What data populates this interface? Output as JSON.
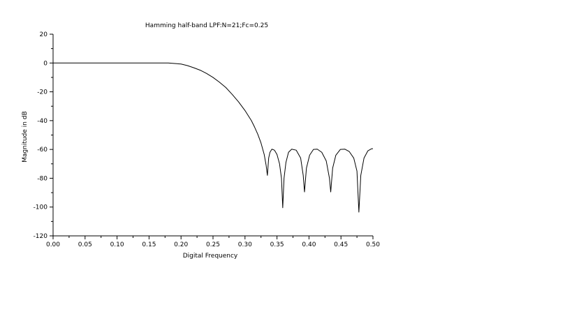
{
  "chart_data": {
    "type": "line",
    "title": "Hamming half-band LPF:N=21;Fc=0.25",
    "xlabel": "Digital Frequency",
    "ylabel": "Magnitude in dB",
    "xlim": [
      0.0,
      0.5
    ],
    "ylim": [
      -120,
      20
    ],
    "xticks": [
      "0.00",
      "0.05",
      "0.10",
      "0.15",
      "0.20",
      "0.25",
      "0.30",
      "0.35",
      "0.40",
      "0.45",
      "0.50"
    ],
    "yticks": [
      "20",
      "0",
      "-20",
      "-40",
      "-60",
      "-80",
      "-100",
      "-120"
    ],
    "grid": false,
    "legend": "none",
    "line_color": "#000000",
    "series": [
      {
        "x": [
          0.0,
          0.05,
          0.1,
          0.15,
          0.18,
          0.2,
          0.21,
          0.22,
          0.23,
          0.24,
          0.25,
          0.26,
          0.27,
          0.28,
          0.29,
          0.3,
          0.31,
          0.315,
          0.32,
          0.325,
          0.33,
          0.333,
          0.335,
          0.337,
          0.339,
          0.342,
          0.346,
          0.35,
          0.354,
          0.357,
          0.359,
          0.361,
          0.364,
          0.368,
          0.373,
          0.38,
          0.387,
          0.391,
          0.393,
          0.396,
          0.401,
          0.407,
          0.413,
          0.42,
          0.427,
          0.432,
          0.434,
          0.437,
          0.442,
          0.449,
          0.456,
          0.463,
          0.47,
          0.475,
          0.478,
          0.481,
          0.486,
          0.492,
          0.498,
          0.5
        ],
        "y": [
          0.0,
          0.0,
          0.0,
          0.0,
          0.0,
          -0.7,
          -1.8,
          -3.3,
          -5.0,
          -7.3,
          -10.0,
          -13.3,
          -17.0,
          -21.8,
          -27.0,
          -33.0,
          -40.0,
          -44.5,
          -49.5,
          -55.5,
          -63.5,
          -71.0,
          -78.0,
          -66.0,
          -62.0,
          -59.8,
          -60.5,
          -63.5,
          -70.0,
          -80.0,
          -100.5,
          -80.0,
          -69.0,
          -62.0,
          -59.8,
          -60.5,
          -66.0,
          -78.0,
          -89.5,
          -73.0,
          -64.0,
          -60.0,
          -59.8,
          -62.0,
          -68.0,
          -80.0,
          -89.5,
          -73.0,
          -64.0,
          -60.0,
          -59.8,
          -61.5,
          -66.0,
          -75.0,
          -103.5,
          -78.0,
          -66.0,
          -61.0,
          -59.5,
          -59.5
        ]
      }
    ]
  }
}
